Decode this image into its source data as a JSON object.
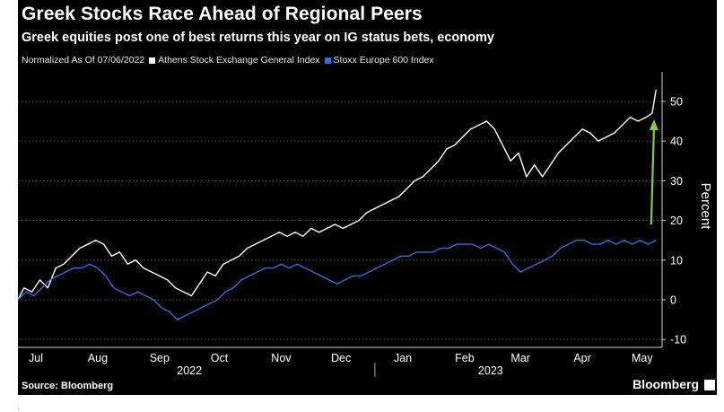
{
  "header": {
    "title": "Greek Stocks Race Ahead of Regional Peers",
    "subtitle": "Greek equities post one of best returns this year on IG status bets, economy"
  },
  "legend": {
    "prefix": "Normalized As Of 07/06/2022",
    "items": [
      {
        "label": "Athens Stock Exchange General Index",
        "color": "#ffffff"
      },
      {
        "label": "Stoxx Europe 600 Index",
        "color": "#2f6fd6"
      }
    ]
  },
  "footer": {
    "source": "Source: Bloomberg",
    "brand": "Bloomberg"
  },
  "colors": {
    "background": "#000000",
    "athens": "#ffffff",
    "stoxx": "#2f6fd6",
    "arrow": "#8ec63f",
    "grid": "#555555"
  },
  "chart_data": {
    "type": "line",
    "ylabel": "Percent",
    "ylim": [
      -12,
      57
    ],
    "yticks": [
      -10,
      0,
      10,
      20,
      30,
      40,
      50
    ],
    "xlim": [
      "2022-07-06",
      "2023-05-25"
    ],
    "month_ticks": [
      {
        "label": "Jul",
        "date": "2022-07-15"
      },
      {
        "label": "Aug",
        "date": "2022-08-15"
      },
      {
        "label": "Sep",
        "date": "2022-09-15"
      },
      {
        "label": "Oct",
        "date": "2022-10-15"
      },
      {
        "label": "Nov",
        "date": "2022-11-15"
      },
      {
        "label": "Dec",
        "date": "2022-12-15"
      },
      {
        "label": "Jan",
        "date": "2023-01-15"
      },
      {
        "label": "Feb",
        "date": "2023-02-15"
      },
      {
        "label": "Mar",
        "date": "2023-03-15"
      },
      {
        "label": "Apr",
        "date": "2023-04-15"
      },
      {
        "label": "May",
        "date": "2023-05-15"
      }
    ],
    "year_labels": [
      {
        "label": "2022",
        "date": "2022-09-30"
      },
      {
        "label": "2023",
        "date": "2023-02-28"
      }
    ],
    "year_divider": "2023-01-01",
    "grid": true,
    "series": [
      {
        "name": "Athens Stock Exchange General Index",
        "color": "#ffffff",
        "points": [
          [
            "2022-07-06",
            0
          ],
          [
            "2022-07-09",
            3
          ],
          [
            "2022-07-13",
            2
          ],
          [
            "2022-07-17",
            5
          ],
          [
            "2022-07-21",
            3
          ],
          [
            "2022-07-25",
            8
          ],
          [
            "2022-07-29",
            9
          ],
          [
            "2022-08-02",
            11
          ],
          [
            "2022-08-06",
            13
          ],
          [
            "2022-08-10",
            14
          ],
          [
            "2022-08-14",
            15
          ],
          [
            "2022-08-18",
            14
          ],
          [
            "2022-08-22",
            11
          ],
          [
            "2022-08-26",
            12
          ],
          [
            "2022-08-30",
            9
          ],
          [
            "2022-09-03",
            10
          ],
          [
            "2022-09-07",
            8
          ],
          [
            "2022-09-11",
            7
          ],
          [
            "2022-09-15",
            6
          ],
          [
            "2022-09-19",
            5
          ],
          [
            "2022-09-23",
            3
          ],
          [
            "2022-09-27",
            2
          ],
          [
            "2022-10-01",
            1
          ],
          [
            "2022-10-05",
            4
          ],
          [
            "2022-10-09",
            7
          ],
          [
            "2022-10-13",
            6
          ],
          [
            "2022-10-17",
            9
          ],
          [
            "2022-10-21",
            10
          ],
          [
            "2022-10-25",
            11
          ],
          [
            "2022-10-29",
            13
          ],
          [
            "2022-11-02",
            14
          ],
          [
            "2022-11-06",
            15
          ],
          [
            "2022-11-10",
            16
          ],
          [
            "2022-11-14",
            17
          ],
          [
            "2022-11-18",
            16
          ],
          [
            "2022-11-22",
            17
          ],
          [
            "2022-11-26",
            16
          ],
          [
            "2022-11-30",
            18
          ],
          [
            "2022-12-04",
            17
          ],
          [
            "2022-12-08",
            18
          ],
          [
            "2022-12-12",
            19
          ],
          [
            "2022-12-16",
            18
          ],
          [
            "2022-12-20",
            19
          ],
          [
            "2022-12-24",
            20
          ],
          [
            "2022-12-28",
            22
          ],
          [
            "2023-01-01",
            23
          ],
          [
            "2023-01-05",
            24
          ],
          [
            "2023-01-09",
            25
          ],
          [
            "2023-01-13",
            26
          ],
          [
            "2023-01-17",
            28
          ],
          [
            "2023-01-21",
            30
          ],
          [
            "2023-01-25",
            31
          ],
          [
            "2023-01-29",
            33
          ],
          [
            "2023-02-02",
            35
          ],
          [
            "2023-02-06",
            38
          ],
          [
            "2023-02-10",
            39
          ],
          [
            "2023-02-14",
            41
          ],
          [
            "2023-02-18",
            43
          ],
          [
            "2023-02-22",
            44
          ],
          [
            "2023-02-26",
            45
          ],
          [
            "2023-03-02",
            43
          ],
          [
            "2023-03-06",
            39
          ],
          [
            "2023-03-10",
            35
          ],
          [
            "2023-03-14",
            37
          ],
          [
            "2023-03-18",
            31
          ],
          [
            "2023-03-22",
            34
          ],
          [
            "2023-03-26",
            31
          ],
          [
            "2023-03-30",
            34
          ],
          [
            "2023-04-03",
            37
          ],
          [
            "2023-04-07",
            39
          ],
          [
            "2023-04-11",
            41
          ],
          [
            "2023-04-15",
            43
          ],
          [
            "2023-04-19",
            42
          ],
          [
            "2023-04-23",
            40
          ],
          [
            "2023-04-27",
            41
          ],
          [
            "2023-05-01",
            42
          ],
          [
            "2023-05-05",
            44
          ],
          [
            "2023-05-09",
            46
          ],
          [
            "2023-05-13",
            45
          ],
          [
            "2023-05-17",
            46
          ],
          [
            "2023-05-20",
            47
          ],
          [
            "2023-05-22",
            53
          ]
        ]
      },
      {
        "name": "Stoxx Europe 600 Index",
        "color": "#2f6fd6",
        "points": [
          [
            "2022-07-06",
            0
          ],
          [
            "2022-07-10",
            2
          ],
          [
            "2022-07-14",
            1
          ],
          [
            "2022-07-18",
            3
          ],
          [
            "2022-07-22",
            5
          ],
          [
            "2022-07-26",
            6
          ],
          [
            "2022-07-30",
            7
          ],
          [
            "2022-08-03",
            8
          ],
          [
            "2022-08-07",
            8
          ],
          [
            "2022-08-11",
            9
          ],
          [
            "2022-08-15",
            8
          ],
          [
            "2022-08-19",
            6
          ],
          [
            "2022-08-23",
            3
          ],
          [
            "2022-08-27",
            2
          ],
          [
            "2022-08-31",
            1
          ],
          [
            "2022-09-04",
            2
          ],
          [
            "2022-09-08",
            1
          ],
          [
            "2022-09-12",
            0
          ],
          [
            "2022-09-16",
            -2
          ],
          [
            "2022-09-20",
            -3
          ],
          [
            "2022-09-24",
            -5
          ],
          [
            "2022-09-28",
            -4
          ],
          [
            "2022-10-02",
            -3
          ],
          [
            "2022-10-06",
            -2
          ],
          [
            "2022-10-10",
            -1
          ],
          [
            "2022-10-14",
            0
          ],
          [
            "2022-10-18",
            2
          ],
          [
            "2022-10-22",
            3
          ],
          [
            "2022-10-26",
            5
          ],
          [
            "2022-10-30",
            6
          ],
          [
            "2022-11-03",
            7
          ],
          [
            "2022-11-07",
            8
          ],
          [
            "2022-11-11",
            8
          ],
          [
            "2022-11-15",
            9
          ],
          [
            "2022-11-19",
            8
          ],
          [
            "2022-11-23",
            9
          ],
          [
            "2022-11-27",
            8
          ],
          [
            "2022-12-01",
            7
          ],
          [
            "2022-12-05",
            6
          ],
          [
            "2022-12-09",
            5
          ],
          [
            "2022-12-13",
            4
          ],
          [
            "2022-12-17",
            5
          ],
          [
            "2022-12-21",
            6
          ],
          [
            "2022-12-25",
            6
          ],
          [
            "2022-12-29",
            7
          ],
          [
            "2023-01-02",
            8
          ],
          [
            "2023-01-06",
            9
          ],
          [
            "2023-01-10",
            10
          ],
          [
            "2023-01-14",
            11
          ],
          [
            "2023-01-18",
            11
          ],
          [
            "2023-01-22",
            12
          ],
          [
            "2023-01-26",
            12
          ],
          [
            "2023-01-30",
            12
          ],
          [
            "2023-02-03",
            13
          ],
          [
            "2023-02-07",
            13
          ],
          [
            "2023-02-11",
            14
          ],
          [
            "2023-02-15",
            14
          ],
          [
            "2023-02-19",
            14
          ],
          [
            "2023-02-23",
            13
          ],
          [
            "2023-02-27",
            14
          ],
          [
            "2023-03-03",
            13
          ],
          [
            "2023-03-07",
            12
          ],
          [
            "2023-03-11",
            9
          ],
          [
            "2023-03-15",
            7
          ],
          [
            "2023-03-19",
            8
          ],
          [
            "2023-03-23",
            9
          ],
          [
            "2023-03-27",
            10
          ],
          [
            "2023-03-31",
            11
          ],
          [
            "2023-04-04",
            13
          ],
          [
            "2023-04-08",
            14
          ],
          [
            "2023-04-12",
            15
          ],
          [
            "2023-04-16",
            15
          ],
          [
            "2023-04-20",
            14
          ],
          [
            "2023-04-24",
            14
          ],
          [
            "2023-04-28",
            15
          ],
          [
            "2023-05-02",
            14
          ],
          [
            "2023-05-06",
            15
          ],
          [
            "2023-05-10",
            14
          ],
          [
            "2023-05-14",
            15
          ],
          [
            "2023-05-18",
            14
          ],
          [
            "2023-05-22",
            15
          ]
        ]
      }
    ],
    "annotation": {
      "type": "arrow",
      "date": "2023-05-20",
      "from": 19,
      "to": 45,
      "color": "#8ec63f"
    }
  }
}
